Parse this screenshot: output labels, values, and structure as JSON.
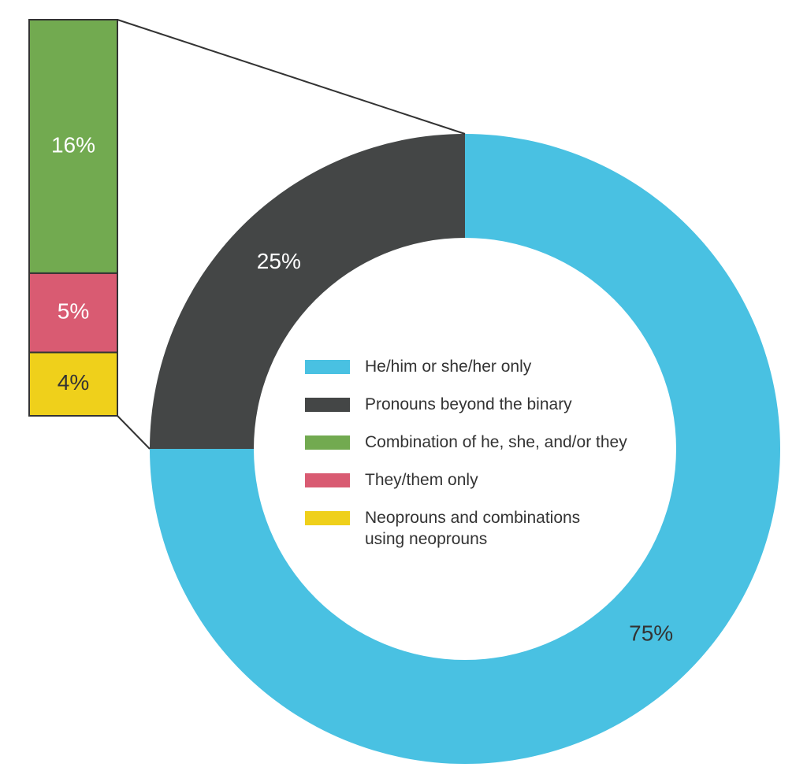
{
  "chart_data": [
    {
      "type": "donut",
      "categories": [
        "He/him or she/her only",
        "Pronouns beyond the binary"
      ],
      "values": [
        75,
        25
      ],
      "value_labels": [
        "75%",
        "25%"
      ],
      "colors": [
        "#49c1e2",
        "#444646"
      ]
    },
    {
      "type": "stacked-bar",
      "categories": [
        "Combination of he, she, and/or they",
        "They/them only",
        "Neoprouns and combinations using neoprouns"
      ],
      "values": [
        16,
        5,
        4
      ],
      "value_labels": [
        "16%",
        "5%",
        "4%"
      ],
      "colors": [
        "#72aa50",
        "#d95b72",
        "#efd01b"
      ]
    }
  ]
}
